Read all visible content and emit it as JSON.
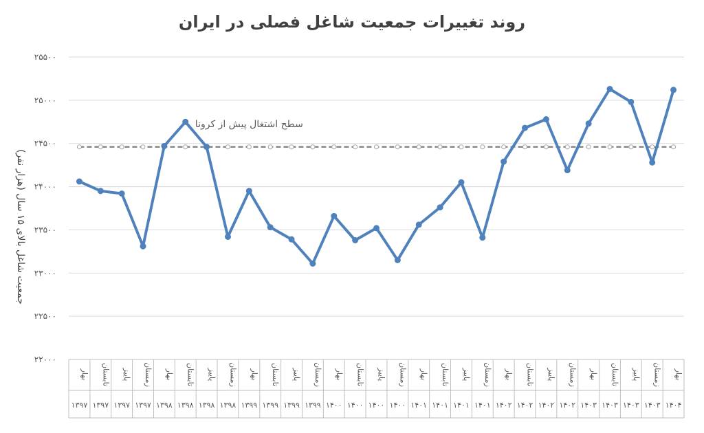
{
  "chart_data": {
    "type": "line",
    "title": "روند تغییرات جمعیت شاغل فصلی در ایران",
    "ylabel": "جمعیت شاغل بالای ۱۵ سال (هزار نفر)",
    "xlabel": "",
    "ylim": [
      22000,
      25500
    ],
    "y_ticks": [
      22000,
      22500,
      23000,
      23500,
      24000,
      24500,
      25000,
      25500
    ],
    "y_tick_labels": [
      "۲۲۰۰۰",
      "۲۲۵۰۰",
      "۲۳۰۰۰",
      "۲۳۵۰۰",
      "۲۴۰۰۰",
      "۲۴۵۰۰",
      "۲۵۰۰۰",
      "۲۵۵۰۰"
    ],
    "grid": true,
    "categories": [
      {
        "season": "بهار",
        "year": "۱۳۹۷"
      },
      {
        "season": "تابستان",
        "year": "۱۳۹۷"
      },
      {
        "season": "پاییز",
        "year": "۱۳۹۷"
      },
      {
        "season": "زمستان",
        "year": "۱۳۹۷"
      },
      {
        "season": "بهار",
        "year": "۱۳۹۸"
      },
      {
        "season": "تابستان",
        "year": "۱۳۹۸"
      },
      {
        "season": "پاییز",
        "year": "۱۳۹۸"
      },
      {
        "season": "زمستان",
        "year": "۱۳۹۸"
      },
      {
        "season": "بهار",
        "year": "۱۳۹۹"
      },
      {
        "season": "تابستان",
        "year": "۱۳۹۹"
      },
      {
        "season": "پاییز",
        "year": "۱۳۹۹"
      },
      {
        "season": "زمستان",
        "year": "۱۳۹۹"
      },
      {
        "season": "بهار",
        "year": "۱۴۰۰"
      },
      {
        "season": "تابستان",
        "year": "۱۴۰۰"
      },
      {
        "season": "پاییز",
        "year": "۱۴۰۰"
      },
      {
        "season": "زمستان",
        "year": "۱۴۰۰"
      },
      {
        "season": "بهار",
        "year": "۱۴۰۱"
      },
      {
        "season": "تابستان",
        "year": "۱۴۰۱"
      },
      {
        "season": "پاییز",
        "year": "۱۴۰۱"
      },
      {
        "season": "زمستان",
        "year": "۱۴۰۱"
      },
      {
        "season": "بهار",
        "year": "۱۴۰۲"
      },
      {
        "season": "تابستان",
        "year": "۱۴۰۲"
      },
      {
        "season": "پاییز",
        "year": "۱۴۰۲"
      },
      {
        "season": "زمستان",
        "year": "۱۴۰۲"
      },
      {
        "season": "بهار",
        "year": "۱۴۰۳"
      },
      {
        "season": "تابستان",
        "year": "۱۴۰۳"
      },
      {
        "season": "پاییز",
        "year": "۱۴۰۳"
      },
      {
        "season": "زمستان",
        "year": "۱۴۰۳"
      },
      {
        "season": "بهار",
        "year": "۱۴۰۴"
      }
    ],
    "series": [
      {
        "name": "",
        "color": "#4f81bd",
        "style": "solid",
        "values": [
          24060,
          23950,
          23920,
          23310,
          24470,
          24750,
          24460,
          23420,
          23950,
          23530,
          23390,
          23110,
          23660,
          23380,
          23520,
          23150,
          23560,
          23760,
          24050,
          23410,
          24290,
          24680,
          24780,
          24190,
          24730,
          25130,
          24980,
          24280,
          25120
        ]
      },
      {
        "name": "سطح اشتغال پیش از کرونا",
        "color": "#7f7f7f",
        "style": "dashed",
        "values": [
          24460,
          24460,
          24460,
          24460,
          24460,
          24460,
          24460,
          24460,
          24460,
          24460,
          24460,
          24460,
          24460,
          24460,
          24460,
          24460,
          24460,
          24460,
          24460,
          24460,
          24460,
          24460,
          24460,
          24460,
          24460,
          24460,
          24460,
          24460,
          24460
        ]
      }
    ],
    "annotations": [
      {
        "text": "سطح اشتغال پیش از کرونا",
        "x_index": 8,
        "y": 24690
      }
    ]
  }
}
